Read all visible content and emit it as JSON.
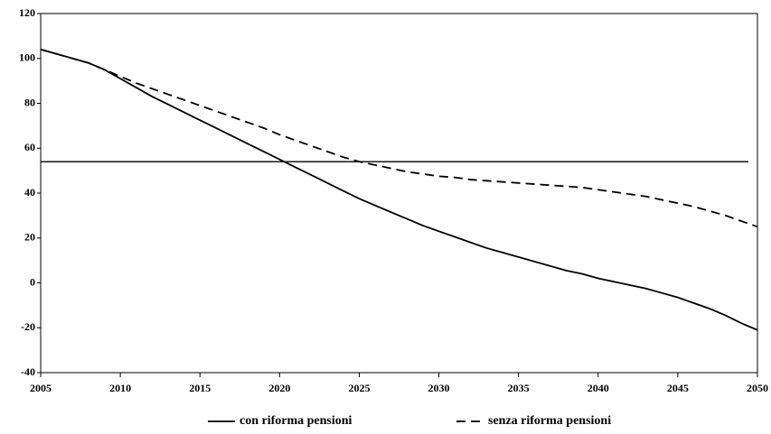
{
  "chart_data": {
    "type": "line",
    "x": [
      2005,
      2006,
      2007,
      2008,
      2009,
      2010,
      2011,
      2012,
      2013,
      2014,
      2015,
      2016,
      2017,
      2018,
      2019,
      2020,
      2021,
      2022,
      2023,
      2024,
      2025,
      2026,
      2027,
      2028,
      2029,
      2030,
      2031,
      2032,
      2033,
      2034,
      2035,
      2036,
      2037,
      2038,
      2039,
      2040,
      2041,
      2042,
      2043,
      2044,
      2045,
      2046,
      2047,
      2048,
      2049,
      2050
    ],
    "series": [
      {
        "name": "con riforma pensioni",
        "color": "#000000",
        "dash": false,
        "values": [
          104,
          102,
          100,
          98,
          95,
          91,
          87,
          83,
          79.5,
          76,
          72.5,
          69,
          65.5,
          62,
          58.5,
          55,
          51.5,
          48,
          44.5,
          41,
          37.5,
          34.5,
          31.5,
          28.5,
          25.5,
          23,
          20.5,
          18,
          15.5,
          13.5,
          11.5,
          9.5,
          7.5,
          5.5,
          4,
          2,
          0.5,
          -1,
          -2.5,
          -4.5,
          -6.5,
          -9,
          -11.5,
          -14.5,
          -18,
          -21
        ]
      },
      {
        "name": "senza riforma pensioni",
        "color": "#000000",
        "dash": true,
        "values": [
          104,
          102,
          100,
          98,
          95,
          92,
          89,
          86.5,
          84,
          81.5,
          79,
          76.5,
          74,
          71.5,
          69,
          66,
          63.5,
          61,
          58.5,
          56,
          54,
          52.5,
          51,
          49.5,
          48.5,
          47.5,
          47,
          46,
          45.5,
          45,
          44.5,
          44,
          43.5,
          43,
          42.5,
          41.5,
          40.5,
          39.5,
          38.5,
          37,
          35.5,
          34,
          32,
          30,
          27.5,
          25
        ]
      }
    ],
    "hline": 54,
    "xlim": [
      2005,
      2050
    ],
    "xticks": [
      2005,
      2010,
      2015,
      2020,
      2025,
      2030,
      2035,
      2040,
      2045,
      2050
    ],
    "ylim": [
      -40,
      120
    ],
    "yticks": [
      -40,
      -20,
      0,
      20,
      40,
      60,
      80,
      100,
      120
    ],
    "grid": false
  }
}
